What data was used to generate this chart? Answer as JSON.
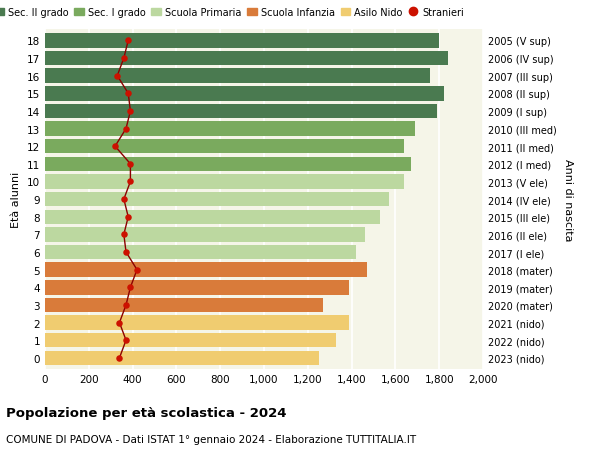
{
  "ages": [
    18,
    17,
    16,
    15,
    14,
    13,
    12,
    11,
    10,
    9,
    8,
    7,
    6,
    5,
    4,
    3,
    2,
    1,
    0
  ],
  "right_labels": [
    "2005 (V sup)",
    "2006 (IV sup)",
    "2007 (III sup)",
    "2008 (II sup)",
    "2009 (I sup)",
    "2010 (III med)",
    "2011 (II med)",
    "2012 (I med)",
    "2013 (V ele)",
    "2014 (IV ele)",
    "2015 (III ele)",
    "2016 (II ele)",
    "2017 (I ele)",
    "2018 (mater)",
    "2019 (mater)",
    "2020 (mater)",
    "2021 (nido)",
    "2022 (nido)",
    "2023 (nido)"
  ],
  "bar_values": [
    1800,
    1840,
    1760,
    1820,
    1790,
    1690,
    1640,
    1670,
    1640,
    1570,
    1530,
    1460,
    1420,
    1470,
    1390,
    1270,
    1390,
    1330,
    1250
  ],
  "bar_colors": [
    "#4a7a50",
    "#4a7a50",
    "#4a7a50",
    "#4a7a50",
    "#4a7a50",
    "#7aaa5e",
    "#7aaa5e",
    "#7aaa5e",
    "#bcd8a0",
    "#bcd8a0",
    "#bcd8a0",
    "#bcd8a0",
    "#bcd8a0",
    "#d97b3a",
    "#d97b3a",
    "#d97b3a",
    "#f0cc70",
    "#f0cc70",
    "#f0cc70"
  ],
  "stranieri_values": [
    380,
    360,
    330,
    380,
    390,
    370,
    320,
    390,
    390,
    360,
    380,
    360,
    370,
    420,
    390,
    370,
    340,
    370,
    340
  ],
  "legend_labels": [
    "Sec. II grado",
    "Sec. I grado",
    "Scuola Primaria",
    "Scuola Infanzia",
    "Asilo Nido",
    "Stranieri"
  ],
  "legend_colors": [
    "#4a7a50",
    "#7aaa5e",
    "#bcd8a0",
    "#d97b3a",
    "#f0cc70",
    "#cc1100"
  ],
  "stranieri_color": "#cc1100",
  "stranieri_line_color": "#8b0000",
  "ylabel_left": "Età alunni",
  "ylabel_right": "Anni di nascita",
  "title": "Popolazione per età scolastica - 2024",
  "subtitle": "COMUNE DI PADOVA - Dati ISTAT 1° gennaio 2024 - Elaborazione TUTTITALIA.IT",
  "xlim": [
    0,
    2000
  ],
  "xticks": [
    0,
    200,
    400,
    600,
    800,
    1000,
    1200,
    1400,
    1600,
    1800,
    2000
  ],
  "bg_color": "#f5f5e8",
  "bar_height": 0.82
}
